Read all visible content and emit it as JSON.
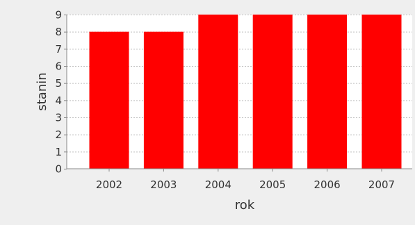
{
  "chart_data": {
    "type": "bar",
    "categories": [
      "2002",
      "2003",
      "2004",
      "2005",
      "2006",
      "2007"
    ],
    "values": [
      8,
      8,
      9,
      9,
      9,
      9
    ],
    "xlabel": "rok",
    "ylabel": "stanin",
    "ylim": [
      0,
      9
    ],
    "yticks": [
      0,
      1,
      2,
      3,
      4,
      5,
      6,
      7,
      8,
      9
    ],
    "grid": true,
    "bar_color": "#ff0000",
    "plot_background": "#ffffff",
    "page_background": "#efefef",
    "gridline_color": "#bfbfbf"
  }
}
